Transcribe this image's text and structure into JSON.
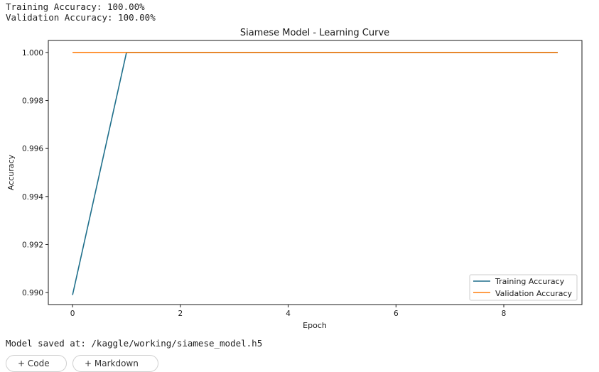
{
  "output": {
    "lines": [
      "Training Accuracy: 100.00%",
      "Validation Accuracy: 100.00%"
    ],
    "saved_line": "Model saved at: /kaggle/working/siamese_model.h5"
  },
  "buttons": {
    "code": "+ Code",
    "markdown": "+ Markdown"
  },
  "chart_data": {
    "type": "line",
    "title": "Siamese Model - Learning Curve",
    "xlabel": "Epoch",
    "ylabel": "Accuracy",
    "xlim": [
      -0.45,
      9.45
    ],
    "ylim": [
      0.9895,
      1.0005
    ],
    "x_ticks": [
      0,
      2,
      4,
      6,
      8
    ],
    "y_ticks": [
      0.99,
      0.992,
      0.994,
      0.996,
      0.998,
      1.0
    ],
    "y_tick_labels": [
      "0.990",
      "0.992",
      "0.994",
      "0.996",
      "0.998",
      "1.000"
    ],
    "legend_position": "lower right",
    "grid": false,
    "x": [
      0,
      1,
      2,
      3,
      4,
      5,
      6,
      7,
      8,
      9
    ],
    "series": [
      {
        "name": "Training Accuracy",
        "color": "#1f6f8b",
        "values": [
          0.9899,
          1.0,
          1.0,
          1.0,
          1.0,
          1.0,
          1.0,
          1.0,
          1.0,
          1.0
        ]
      },
      {
        "name": "Validation Accuracy",
        "color": "#ff7f0e",
        "values": [
          1.0,
          1.0,
          1.0,
          1.0,
          1.0,
          1.0,
          1.0,
          1.0,
          1.0,
          1.0
        ]
      }
    ]
  }
}
